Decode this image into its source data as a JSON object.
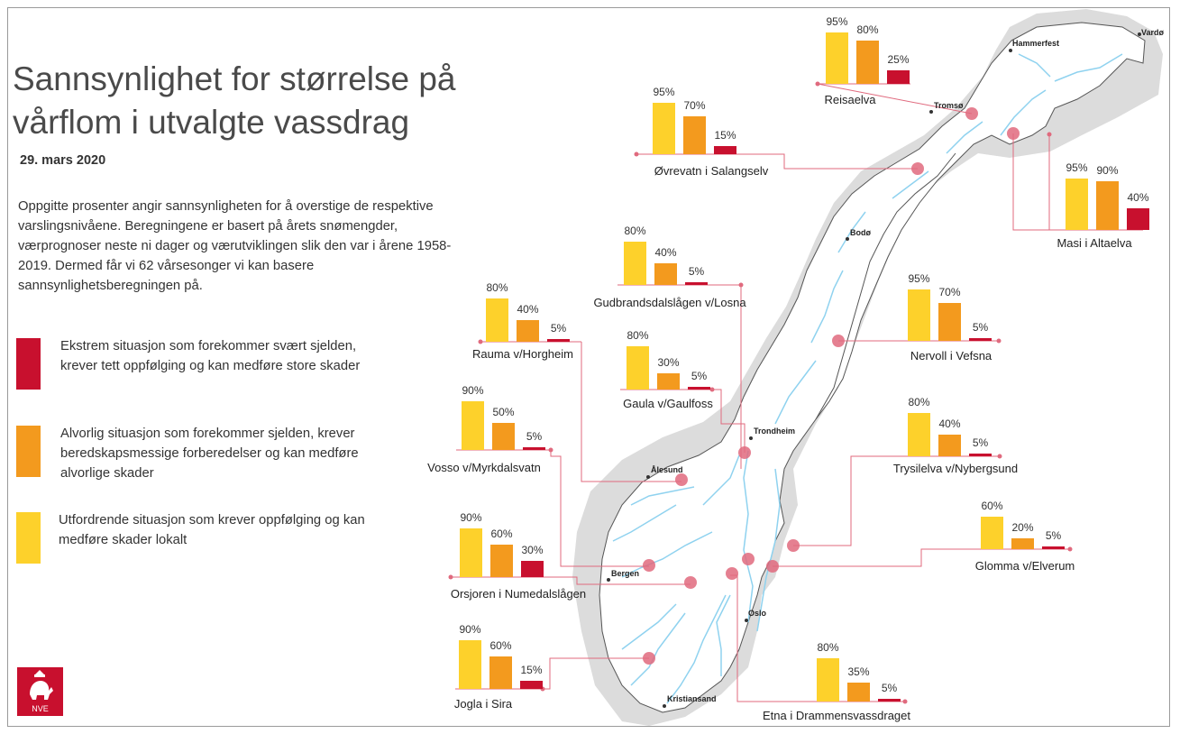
{
  "title": "Sannsynlighet for størrelse på vårflom i utvalgte vassdrag",
  "date": "29. mars 2020",
  "intro": "Oppgitte prosenter angir sannsynligheten for å overstige de respektive varslingsnivåene. Beregningene er basert på årets snømengder, værprognoser neste ni dager og værutviklingen slik den var i årene 1958-2019.  Dermed får vi 62 vårsesonger vi kan basere sannsynlighetsberegningen på.",
  "legend": [
    {
      "color": "#c8102e",
      "text": "Ekstrem situasjon som forekommer svært sjelden, krever tett oppfølging og kan medføre store skader"
    },
    {
      "color": "#f39a1e",
      "text": "Alvorlig situasjon som forekommer sjelden, krever beredskapsmessige forberedelser og kan medføre alvorlige skader"
    },
    {
      "color": "#fdd12b",
      "text": "Utfordrende situasjon som krever oppfølging og kan medføre skader lokalt"
    }
  ],
  "colors": {
    "yellow": "#fdd12b",
    "orange": "#f39a1e",
    "red": "#c8102e",
    "marker": "#e06a7e",
    "land": "#ffffff",
    "buffer": "#dcdcdc",
    "water": "#8fd2ef"
  },
  "logo_text": "NVE",
  "cities": [
    "Vardø",
    "Hammerfest",
    "Tromsø",
    "Bodø",
    "Trondheim",
    "Ålesund",
    "Bergen",
    "Oslo",
    "Kristiansand"
  ],
  "chart_data": {
    "type": "bar",
    "levels": [
      "Utfordrende",
      "Alvorlig",
      "Ekstrem"
    ],
    "ylim": [
      0,
      100
    ],
    "stations": [
      {
        "name": "Reisaelva",
        "values": [
          95,
          80,
          25
        ],
        "labels": [
          "95%",
          "80%",
          "25%"
        ]
      },
      {
        "name": "Øvrevatn i Salangselv",
        "values": [
          95,
          70,
          15
        ],
        "labels": [
          "95%",
          "70%",
          "15%"
        ]
      },
      {
        "name": "Masi i Altaelva",
        "values": [
          95,
          90,
          40
        ],
        "labels": [
          "95%",
          "90%",
          "40%"
        ]
      },
      {
        "name": "Gudbrandsdalslågen v/Losna",
        "values": [
          80,
          40,
          5
        ],
        "labels": [
          "80%",
          "40%",
          "5%"
        ]
      },
      {
        "name": "Rauma v/Horgheim",
        "values": [
          80,
          40,
          5
        ],
        "labels": [
          "80%",
          "40%",
          "5%"
        ]
      },
      {
        "name": "Nervoll i Vefsna",
        "values": [
          95,
          70,
          5
        ],
        "labels": [
          "95%",
          "70%",
          "5%"
        ]
      },
      {
        "name": "Gaula v/Gaulfoss",
        "values": [
          80,
          30,
          5
        ],
        "labels": [
          "80%",
          "30%",
          "5%"
        ]
      },
      {
        "name": "Vosso v/Myrkdalsvatn",
        "values": [
          90,
          50,
          5
        ],
        "labels": [
          "90%",
          "50%",
          "5%"
        ]
      },
      {
        "name": "Trysilelva v/Nybergsund",
        "values": [
          80,
          40,
          5
        ],
        "labels": [
          "80%",
          "40%",
          "5%"
        ]
      },
      {
        "name": "Glomma v/Elverum",
        "values": [
          60,
          20,
          5
        ],
        "labels": [
          "60%",
          "20%",
          "5%"
        ]
      },
      {
        "name": "Orsjoren i Numedalslågen",
        "values": [
          90,
          60,
          30
        ],
        "labels": [
          "90%",
          "60%",
          "30%"
        ]
      },
      {
        "name": "Jogla i Sira",
        "values": [
          90,
          60,
          15
        ],
        "labels": [
          "90%",
          "60%",
          "15%"
        ]
      },
      {
        "name": "Etna i Drammensvassdraget",
        "values": [
          80,
          35,
          5
        ],
        "labels": [
          "80%",
          "35%",
          "5%"
        ]
      }
    ]
  }
}
